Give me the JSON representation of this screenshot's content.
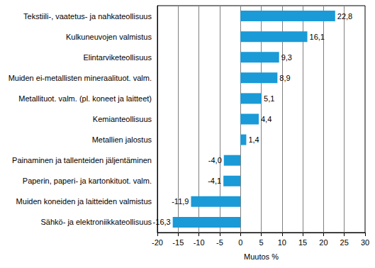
{
  "chart_data": {
    "type": "bar",
    "orientation": "horizontal",
    "x_label": "Muutos %",
    "categories": [
      "Tekstiili-, vaatetus- ja nahkateollisuus",
      "Kulkuneuvojen valmistus",
      "Elintarviketeollisuus",
      "Muiden ei-metallisten mineraalituot. valm.",
      "Metallituot. valm. (pl. koneet ja laitteet)",
      "Kemianteollisuus",
      "Metallien jalostus",
      "Painaminen ja tallenteiden jäljentäminen",
      "Paperin, paperi- ja kartonkituot. valm.",
      "Muiden koneiden ja laitteiden valmistus",
      "Sähkö- ja elektroniikkateollisuus"
    ],
    "values": [
      22.8,
      16.1,
      9.3,
      8.9,
      5.1,
      4.4,
      1.4,
      -4.0,
      -4.1,
      -11.9,
      -16.3
    ],
    "value_labels": [
      "22,8",
      "16,1",
      "9,3",
      "8,9",
      "5,1",
      "4,4",
      "1,4",
      "-4,0",
      "-4,1",
      "-11,9",
      "-16,3"
    ],
    "data_labels": true,
    "color": "#1a9ad6",
    "xlim": [
      -20,
      30
    ],
    "xticks": [
      -20,
      -15,
      -10,
      -5,
      0,
      5,
      10,
      15,
      20,
      25,
      30
    ],
    "grid": true
  }
}
